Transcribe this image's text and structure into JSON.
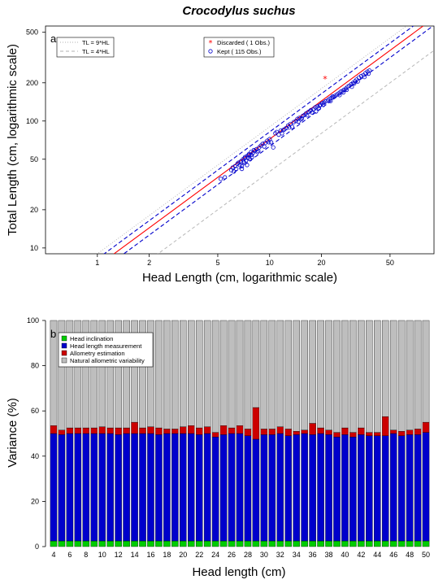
{
  "chart_data": [
    {
      "type": "scatter",
      "panel_label": "a",
      "title": "Crocodylus suchus",
      "xlabel": "Head Length (cm, logarithmic scale)",
      "ylabel": "Total Length (cm, logarithmic scale)",
      "xscale": "log",
      "yscale": "log",
      "xlim": [
        0.5,
        90
      ],
      "ylim": [
        9,
        560
      ],
      "xticks": [
        "1",
        "2",
        "5",
        "10",
        "20",
        "50"
      ],
      "yticks": [
        "10",
        "20",
        "50",
        "100",
        "200",
        "500"
      ],
      "legend_left": {
        "placement": "top-left",
        "items": [
          {
            "label": "TL = 9*HL",
            "style": "dotted",
            "color": "#b0b0b0"
          },
          {
            "label": "TL = 4*HL",
            "style": "dashed",
            "color": "#b0b0b0"
          }
        ]
      },
      "legend_right": {
        "placement": "top-center",
        "items": [
          {
            "label": "Discarded ( 1 Obs.)",
            "marker": "*",
            "color": "#ff0000"
          },
          {
            "label": "Kept ( 115 Obs.)",
            "marker": "o",
            "color": "#0000cc"
          }
        ]
      },
      "reference_lines": [
        {
          "name": "TL = 9*HL",
          "factor": 9
        },
        {
          "name": "TL = 4*HL",
          "factor": 4
        }
      ],
      "fit": {
        "coef": 7.2,
        "exponent": 1.0,
        "color": "#ff0000",
        "band_color": "#0000cc",
        "band_factor": 1.14
      },
      "discarded": [
        {
          "x": 21,
          "y": 215
        }
      ],
      "kept": [
        {
          "x": 5.2,
          "y": 35
        },
        {
          "x": 5.5,
          "y": 36
        },
        {
          "x": 6.0,
          "y": 41
        },
        {
          "x": 6.1,
          "y": 43
        },
        {
          "x": 6.3,
          "y": 44
        },
        {
          "x": 6.4,
          "y": 42
        },
        {
          "x": 6.5,
          "y": 46
        },
        {
          "x": 6.7,
          "y": 45
        },
        {
          "x": 6.8,
          "y": 48
        },
        {
          "x": 6.9,
          "y": 44
        },
        {
          "x": 7.0,
          "y": 50
        },
        {
          "x": 7.1,
          "y": 47
        },
        {
          "x": 7.2,
          "y": 52
        },
        {
          "x": 7.3,
          "y": 49
        },
        {
          "x": 7.4,
          "y": 53
        },
        {
          "x": 7.5,
          "y": 51
        },
        {
          "x": 7.6,
          "y": 55
        },
        {
          "x": 7.7,
          "y": 50
        },
        {
          "x": 7.8,
          "y": 57
        },
        {
          "x": 8.0,
          "y": 56
        },
        {
          "x": 8.2,
          "y": 58
        },
        {
          "x": 8.4,
          "y": 60
        },
        {
          "x": 8.5,
          "y": 57
        },
        {
          "x": 8.7,
          "y": 62
        },
        {
          "x": 6.9,
          "y": 42
        },
        {
          "x": 7.4,
          "y": 45
        },
        {
          "x": 7.9,
          "y": 52
        },
        {
          "x": 6.6,
          "y": 47
        },
        {
          "x": 8.9,
          "y": 64
        },
        {
          "x": 9.1,
          "y": 66
        },
        {
          "x": 9.4,
          "y": 67
        },
        {
          "x": 9.7,
          "y": 70
        },
        {
          "x": 10.0,
          "y": 72
        },
        {
          "x": 10.2,
          "y": 68
        },
        {
          "x": 10.5,
          "y": 62
        },
        {
          "x": 10.8,
          "y": 80
        },
        {
          "x": 11.0,
          "y": 82
        },
        {
          "x": 11.3,
          "y": 78
        },
        {
          "x": 11.6,
          "y": 84
        },
        {
          "x": 12.0,
          "y": 85
        },
        {
          "x": 12.5,
          "y": 88
        },
        {
          "x": 12.8,
          "y": 92
        },
        {
          "x": 13.2,
          "y": 95
        },
        {
          "x": 13.5,
          "y": 90
        },
        {
          "x": 13.8,
          "y": 98
        },
        {
          "x": 14.2,
          "y": 100
        },
        {
          "x": 14.5,
          "y": 104
        },
        {
          "x": 14.9,
          "y": 106
        },
        {
          "x": 15.2,
          "y": 103
        },
        {
          "x": 15.6,
          "y": 110
        },
        {
          "x": 16.0,
          "y": 112
        },
        {
          "x": 16.3,
          "y": 115
        },
        {
          "x": 16.8,
          "y": 118
        },
        {
          "x": 17.2,
          "y": 120
        },
        {
          "x": 17.6,
          "y": 117
        },
        {
          "x": 18.0,
          "y": 124
        },
        {
          "x": 18.4,
          "y": 128
        },
        {
          "x": 18.9,
          "y": 130
        },
        {
          "x": 19.3,
          "y": 126
        },
        {
          "x": 19.8,
          "y": 134
        },
        {
          "x": 20.2,
          "y": 138
        },
        {
          "x": 20.7,
          "y": 140
        },
        {
          "x": 21.2,
          "y": 143
        },
        {
          "x": 21.8,
          "y": 146
        },
        {
          "x": 22.3,
          "y": 150
        },
        {
          "x": 22.9,
          "y": 152
        },
        {
          "x": 23.5,
          "y": 155
        },
        {
          "x": 24.0,
          "y": 158
        },
        {
          "x": 24.6,
          "y": 162
        },
        {
          "x": 25.2,
          "y": 165
        },
        {
          "x": 25.8,
          "y": 170
        },
        {
          "x": 26.4,
          "y": 172
        },
        {
          "x": 27.0,
          "y": 176
        },
        {
          "x": 27.7,
          "y": 180
        },
        {
          "x": 28.4,
          "y": 186
        },
        {
          "x": 29.0,
          "y": 190
        },
        {
          "x": 29.8,
          "y": 195
        },
        {
          "x": 30.5,
          "y": 200
        },
        {
          "x": 31.3,
          "y": 206
        },
        {
          "x": 32.0,
          "y": 212
        },
        {
          "x": 33.0,
          "y": 220
        },
        {
          "x": 34.0,
          "y": 226
        },
        {
          "x": 35.0,
          "y": 230
        },
        {
          "x": 36.0,
          "y": 238
        },
        {
          "x": 37.0,
          "y": 245
        },
        {
          "x": 38.0,
          "y": 250
        },
        {
          "x": 7.15,
          "y": 51
        },
        {
          "x": 7.55,
          "y": 54
        },
        {
          "x": 8.1,
          "y": 59
        },
        {
          "x": 9.3,
          "y": 63
        },
        {
          "x": 11.8,
          "y": 80
        },
        {
          "x": 13.0,
          "y": 89
        },
        {
          "x": 14.7,
          "y": 99
        },
        {
          "x": 16.5,
          "y": 111
        },
        {
          "x": 18.6,
          "y": 119
        },
        {
          "x": 20.5,
          "y": 134
        },
        {
          "x": 22.6,
          "y": 144
        },
        {
          "x": 25.5,
          "y": 160
        },
        {
          "x": 28.0,
          "y": 176
        },
        {
          "x": 30.0,
          "y": 186
        },
        {
          "x": 32.5,
          "y": 205
        },
        {
          "x": 35.5,
          "y": 222
        },
        {
          "x": 37.5,
          "y": 236
        },
        {
          "x": 6.2,
          "y": 40
        },
        {
          "x": 7.05,
          "y": 48
        },
        {
          "x": 7.85,
          "y": 54
        },
        {
          "x": 8.6,
          "y": 58
        },
        {
          "x": 9.9,
          "y": 68
        },
        {
          "x": 12.2,
          "y": 86
        },
        {
          "x": 15.4,
          "y": 105
        },
        {
          "x": 17.4,
          "y": 122
        },
        {
          "x": 19.5,
          "y": 132
        },
        {
          "x": 23.2,
          "y": 156
        },
        {
          "x": 26.8,
          "y": 168
        },
        {
          "x": 31.0,
          "y": 198
        }
      ]
    },
    {
      "type": "bar",
      "stacked": true,
      "panel_label": "b",
      "xlabel": "Head length (cm)",
      "ylabel": "Variance (%)",
      "ylim": [
        0,
        100
      ],
      "yticks": [
        "0",
        "20",
        "40",
        "60",
        "80",
        "100"
      ],
      "xticks": [
        "4",
        "6",
        "8",
        "10",
        "12",
        "14",
        "16",
        "18",
        "20",
        "22",
        "24",
        "26",
        "28",
        "30",
        "32",
        "34",
        "36",
        "38",
        "40",
        "42",
        "44",
        "46",
        "48",
        "50"
      ],
      "categories": [
        4,
        5,
        6,
        7,
        8,
        9,
        10,
        11,
        12,
        13,
        14,
        15,
        16,
        17,
        18,
        19,
        20,
        21,
        22,
        23,
        24,
        25,
        26,
        27,
        28,
        29,
        30,
        31,
        32,
        33,
        34,
        35,
        36,
        37,
        38,
        39,
        40,
        41,
        42,
        43,
        44,
        45,
        46,
        47,
        48,
        49,
        50
      ],
      "legend": {
        "placement": "top-left"
      },
      "series": [
        {
          "name": "Head inclination",
          "color": "#00cc00",
          "values": [
            2.5,
            2.5,
            2.5,
            2.5,
            2.5,
            2.5,
            2.5,
            2.5,
            2.5,
            2.5,
            2.5,
            2.5,
            2.5,
            2.5,
            2.5,
            2.5,
            2.5,
            2.5,
            2.5,
            2.5,
            2.5,
            2.5,
            2.5,
            2.5,
            2.5,
            2.5,
            2.5,
            2.5,
            2.5,
            2.5,
            2.5,
            2.5,
            2.5,
            2.5,
            2.5,
            2.5,
            2.5,
            2.5,
            2.5,
            2.5,
            2.5,
            2.5,
            2.5,
            2.5,
            2.5,
            2.5,
            2.5
          ]
        },
        {
          "name": "Head length measurement",
          "color": "#0000cc",
          "values": [
            47.5,
            47.0,
            47.5,
            47.5,
            47.5,
            47.5,
            47.5,
            47.5,
            47.0,
            47.5,
            47.5,
            47.5,
            47.5,
            47.0,
            47.5,
            47.5,
            47.5,
            47.5,
            47.0,
            47.5,
            46.0,
            47.0,
            47.5,
            47.5,
            46.5,
            45.0,
            47.0,
            47.0,
            47.5,
            46.5,
            47.0,
            47.5,
            47.0,
            47.5,
            47.0,
            46.0,
            47.0,
            46.0,
            47.0,
            46.5,
            46.5,
            46.5,
            47.5,
            46.5,
            47.0,
            47.0,
            48.0
          ]
        },
        {
          "name": "Allometry estimation",
          "color": "#cc0000",
          "values": [
            3.5,
            2.0,
            2.5,
            2.5,
            2.5,
            2.5,
            3.0,
            2.5,
            3.0,
            2.5,
            5.0,
            2.5,
            3.0,
            3.0,
            2.0,
            2.0,
            3.0,
            3.5,
            3.0,
            3.0,
            2.0,
            4.0,
            2.5,
            3.5,
            3.0,
            14.0,
            2.5,
            2.5,
            3.0,
            3.0,
            1.5,
            1.5,
            5.0,
            2.5,
            2.0,
            2.0,
            3.0,
            2.0,
            3.0,
            1.5,
            1.5,
            8.5,
            1.5,
            2.0,
            2.0,
            2.5,
            4.5
          ]
        },
        {
          "name": "Natural allometric variability",
          "color": "#bebebe",
          "values": [
            46.5,
            48.5,
            47.5,
            47.5,
            47.5,
            47.5,
            47.0,
            47.5,
            47.5,
            47.5,
            45.0,
            47.5,
            47.0,
            47.5,
            48.0,
            48.0,
            47.0,
            46.5,
            47.5,
            47.0,
            49.5,
            46.5,
            47.5,
            46.5,
            48.0,
            38.5,
            48.0,
            48.0,
            47.0,
            48.0,
            49.0,
            48.5,
            45.5,
            47.5,
            48.5,
            49.5,
            47.5,
            49.5,
            47.5,
            49.5,
            49.5,
            42.5,
            48.5,
            49.0,
            48.5,
            48.0,
            45.0
          ]
        }
      ]
    }
  ]
}
